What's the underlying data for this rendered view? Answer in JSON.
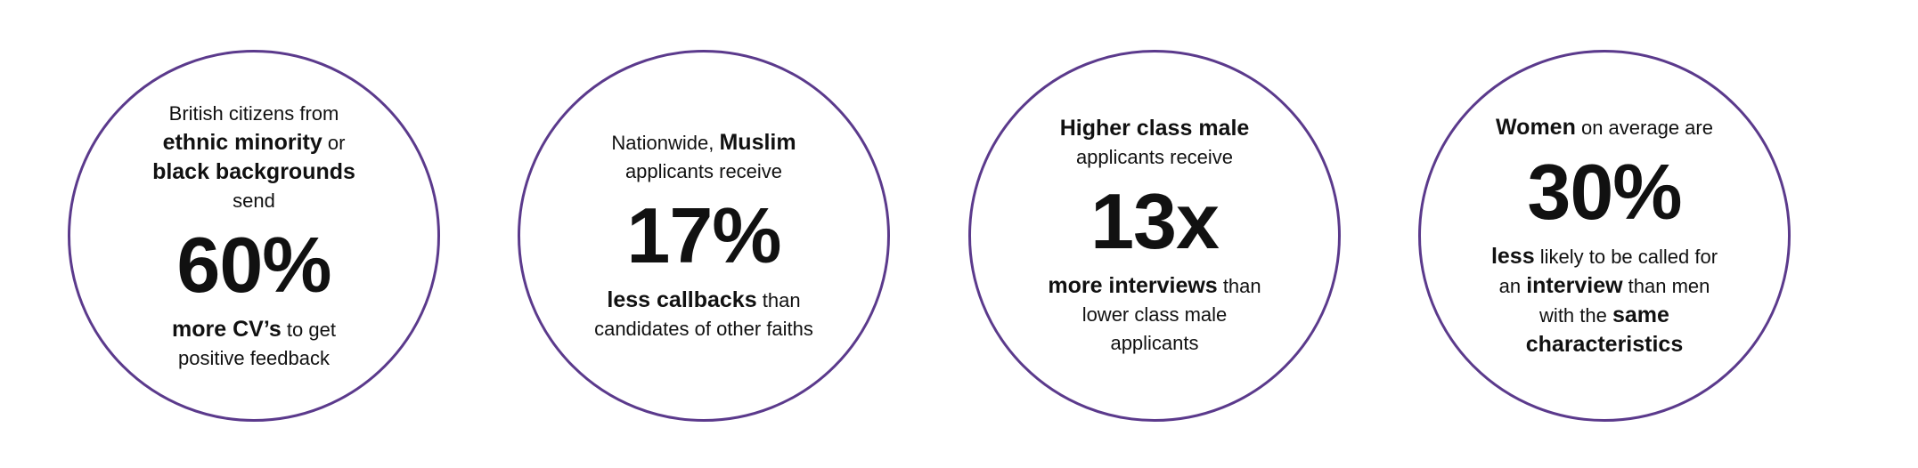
{
  "stats": [
    {
      "before": [
        [
          {
            "text": "British citizens from",
            "bold": false
          }
        ],
        [
          {
            "text": "ethnic minority",
            "bold": true
          },
          {
            "text": " or",
            "bold": false
          }
        ],
        [
          {
            "text": "black backgrounds",
            "bold": true
          }
        ],
        [
          {
            "text": "send",
            "bold": false
          }
        ]
      ],
      "figure": "60%",
      "after": [
        [
          {
            "text": "more CV’s",
            "bold": true
          },
          {
            "text": " to get",
            "bold": false
          }
        ],
        [
          {
            "text": "positive feedback",
            "bold": false
          }
        ]
      ]
    },
    {
      "before": [
        [
          {
            "text": "Nationwide, ",
            "bold": false
          },
          {
            "text": "Muslim",
            "bold": true
          }
        ],
        [
          {
            "text": "applicants receive",
            "bold": false
          }
        ]
      ],
      "figure": "17%",
      "after": [
        [
          {
            "text": "less callbacks",
            "bold": true
          },
          {
            "text": " than",
            "bold": false
          }
        ],
        [
          {
            "text": "candidates of other faiths",
            "bold": false
          }
        ]
      ]
    },
    {
      "before": [
        [
          {
            "text": "Higher class male",
            "bold": true
          }
        ],
        [
          {
            "text": "applicants receive",
            "bold": false
          }
        ]
      ],
      "figure": "13x",
      "after": [
        [
          {
            "text": "more interviews",
            "bold": true
          },
          {
            "text": " than",
            "bold": false
          }
        ],
        [
          {
            "text": "lower class male",
            "bold": false
          }
        ],
        [
          {
            "text": "applicants",
            "bold": false
          }
        ]
      ]
    },
    {
      "before": [
        [
          {
            "text": "Women",
            "bold": true
          },
          {
            "text": " on average are",
            "bold": false
          }
        ]
      ],
      "figure": "30%",
      "after": [
        [
          {
            "text": "less",
            "bold": true
          },
          {
            "text": " likely to be called for",
            "bold": false
          }
        ],
        [
          {
            "text": "an ",
            "bold": false
          },
          {
            "text": "interview",
            "bold": true
          },
          {
            "text": " than men",
            "bold": false
          }
        ],
        [
          {
            "text": "with the ",
            "bold": false
          },
          {
            "text": "same",
            "bold": true
          }
        ],
        [
          {
            "text": "characteristics",
            "bold": true
          }
        ]
      ]
    }
  ]
}
